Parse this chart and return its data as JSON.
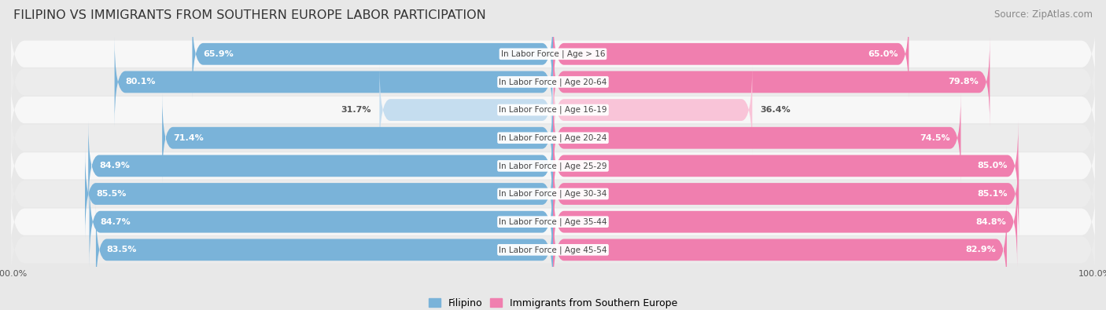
{
  "title": "FILIPINO VS IMMIGRANTS FROM SOUTHERN EUROPE LABOR PARTICIPATION",
  "source": "Source: ZipAtlas.com",
  "categories": [
    "In Labor Force | Age > 16",
    "In Labor Force | Age 20-64",
    "In Labor Force | Age 16-19",
    "In Labor Force | Age 20-24",
    "In Labor Force | Age 25-29",
    "In Labor Force | Age 30-34",
    "In Labor Force | Age 35-44",
    "In Labor Force | Age 45-54"
  ],
  "filipino_values": [
    65.9,
    80.1,
    31.7,
    71.4,
    84.9,
    85.5,
    84.7,
    83.5
  ],
  "immigrant_values": [
    65.0,
    79.8,
    36.4,
    74.5,
    85.0,
    85.1,
    84.8,
    82.9
  ],
  "filipino_color": "#7ab3d9",
  "immigrant_color": "#f07faf",
  "filipino_color_light": "#c5ddef",
  "immigrant_color_light": "#f9c4d8",
  "background_color": "#e8e8e8",
  "row_bg_even": "#f7f7f7",
  "row_bg_odd": "#ececec",
  "label_color_white": "#ffffff",
  "label_color_dark": "#555555",
  "legend_filipino": "Filipino",
  "legend_immigrant": "Immigrants from Southern Europe",
  "title_fontsize": 11.5,
  "source_fontsize": 8.5,
  "bar_label_fontsize": 8,
  "category_fontsize": 7.5,
  "axis_label_fontsize": 8
}
